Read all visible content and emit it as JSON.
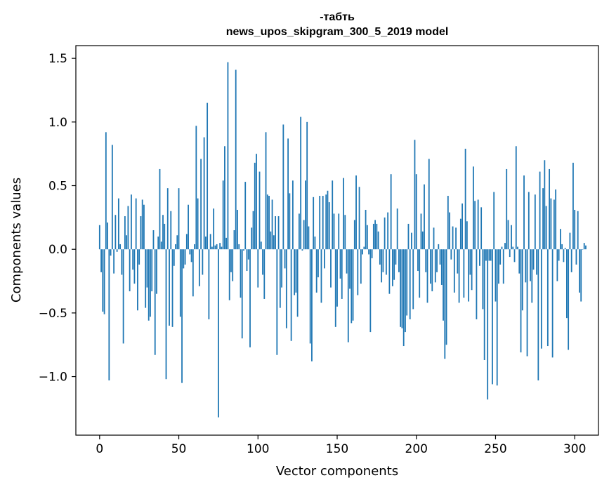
{
  "chart_data": {
    "type": "bar",
    "title_line1": "-табть",
    "title_line2": "news_upos_skipgram_300_5_2019 model",
    "xlabel": "Vector components",
    "ylabel": "Components values",
    "xlim": [
      -15,
      315
    ],
    "ylim": [
      -1.46,
      1.6
    ],
    "xticks": [
      0,
      50,
      100,
      150,
      200,
      250,
      300
    ],
    "xtick_labels": [
      "0",
      "50",
      "100",
      "150",
      "200",
      "250",
      "300"
    ],
    "yticks": [
      -1.0,
      -0.5,
      0.0,
      0.5,
      1.0,
      1.5
    ],
    "ytick_labels": [
      "−1.0",
      "−0.5",
      "0.0",
      "0.5",
      "1.0",
      "1.5"
    ],
    "bar_color": "#1f77b4",
    "values": [
      0.19,
      -0.18,
      -0.49,
      -0.51,
      0.92,
      0.21,
      -1.03,
      -0.05,
      0.82,
      -0.19,
      0.27,
      -0.02,
      0.4,
      0.04,
      -0.2,
      -0.74,
      0.26,
      0.11,
      0.34,
      -0.33,
      0.43,
      -0.16,
      -0.27,
      0.4,
      -0.48,
      -0.12,
      0.26,
      0.39,
      0.35,
      -0.46,
      -0.3,
      -0.56,
      -0.53,
      -0.33,
      0.15,
      -0.83,
      -0.35,
      0.1,
      0.63,
      0.06,
      0.27,
      0.2,
      -1.02,
      0.48,
      -0.6,
      0.3,
      -0.61,
      -0.13,
      0.04,
      0.11,
      0.48,
      -0.53,
      -1.05,
      -0.15,
      -0.12,
      0.12,
      0.35,
      -0.04,
      -0.1,
      -0.37,
      0.04,
      0.97,
      0.4,
      -0.29,
      0.71,
      -0.2,
      0.88,
      0.1,
      1.15,
      -0.55,
      0.12,
      0.02,
      0.32,
      0.03,
      0.04,
      -1.32,
      0.05,
      0.02,
      0.54,
      0.81,
      0.09,
      1.47,
      -0.4,
      -0.18,
      -0.25,
      0.15,
      1.41,
      0.31,
      0.04,
      -0.38,
      -0.7,
      -0.01,
      0.53,
      -0.17,
      -0.08,
      -0.77,
      0.17,
      0.3,
      0.68,
      0.75,
      -0.3,
      0.61,
      0.06,
      -0.2,
      -0.39,
      0.92,
      0.43,
      0.42,
      0.14,
      0.39,
      0.11,
      0.26,
      -0.83,
      0.26,
      -0.46,
      -0.3,
      0.98,
      -0.15,
      -0.62,
      0.87,
      0.44,
      -0.72,
      0.54,
      -0.36,
      -0.34,
      -0.53,
      0.28,
      1.04,
      -0.01,
      0.23,
      0.54,
      1.0,
      0.18,
      -0.74,
      -0.88,
      0.41,
      0.1,
      -0.34,
      -0.22,
      0.42,
      -0.42,
      0.42,
      -0.15,
      0.43,
      0.46,
      0.37,
      -0.3,
      0.54,
      0.28,
      -0.61,
      -0.45,
      0.28,
      -0.23,
      -0.39,
      0.56,
      0.27,
      -0.19,
      -0.73,
      -0.31,
      -0.58,
      -0.56,
      0.23,
      0.58,
      -0.36,
      0.49,
      -0.27,
      -0.04,
      0.02,
      0.31,
      0.19,
      -0.04,
      -0.65,
      -0.07,
      0.2,
      0.23,
      0.2,
      0.14,
      -0.12,
      -0.26,
      -0.18,
      0.25,
      -0.2,
      0.29,
      -0.35,
      0.59,
      -0.29,
      -0.24,
      -0.12,
      0.32,
      -0.18,
      -0.61,
      -0.62,
      -0.76,
      -0.65,
      -0.52,
      0.2,
      -0.55,
      0.13,
      -0.47,
      0.86,
      0.59,
      -0.17,
      -0.38,
      0.28,
      0.14,
      0.51,
      -0.18,
      -0.42,
      0.71,
      -0.27,
      -0.33,
      0.17,
      -0.26,
      -0.18,
      0.04,
      -0.12,
      -0.28,
      -0.56,
      -0.86,
      -0.75,
      0.42,
      0.29,
      -0.08,
      0.18,
      -0.34,
      0.17,
      -0.19,
      -0.42,
      0.24,
      0.36,
      -0.38,
      0.79,
      0.22,
      -0.41,
      -0.2,
      -0.32,
      0.65,
      0.38,
      -0.55,
      0.39,
      -0.13,
      0.33,
      -0.47,
      -0.87,
      -0.09,
      -1.18,
      -0.09,
      -0.09,
      -1.06,
      0.45,
      -0.41,
      -1.07,
      -0.27,
      -0.12,
      0.02,
      -0.27,
      0.05,
      0.63,
      0.23,
      -0.06,
      0.19,
      0.02,
      -0.1,
      0.81,
      0.02,
      -0.19,
      -0.81,
      -0.48,
      0.58,
      -0.26,
      -0.84,
      0.45,
      -0.25,
      -0.42,
      -0.16,
      0.43,
      -0.2,
      -1.03,
      0.61,
      -0.78,
      0.48,
      0.7,
      0.34,
      -0.76,
      0.63,
      0.4,
      -0.85,
      0.39,
      0.47,
      -0.25,
      -0.09,
      0.16,
      0.04,
      -0.1,
      0.01,
      -0.54,
      -0.79,
      0.13,
      -0.18,
      0.68,
      0.31,
      -0.12,
      0.3,
      -0.34,
      -0.41,
      0.0,
      0.05,
      0.03
    ]
  }
}
